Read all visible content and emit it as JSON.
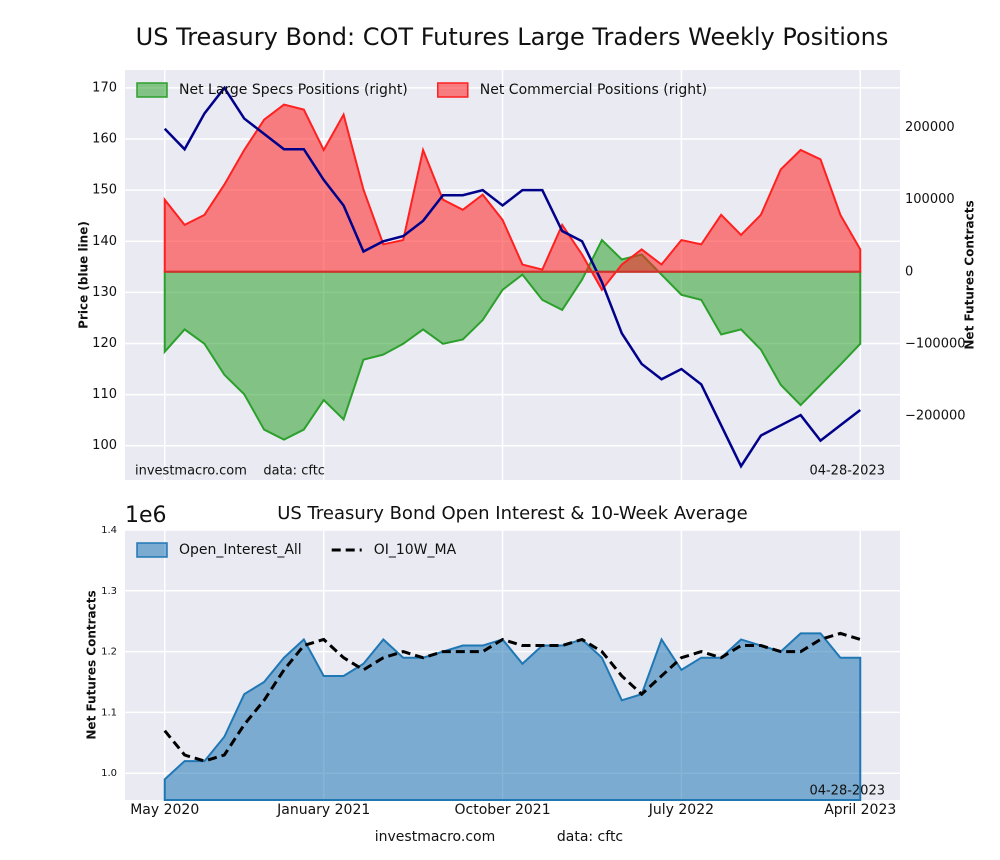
{
  "title": "US Treasury Bond: COT Futures Large Traders Weekly Positions",
  "chart_data": [
    {
      "type": "area",
      "ylabel": "Price (blue line)",
      "y2label": "Net Futures Contracts",
      "annotations": [
        "investmacro.com    data: cftc",
        "04-28-2023"
      ],
      "legend": "upper left",
      "grid": true,
      "x": [
        "2020-05",
        "2020-06",
        "2020-07",
        "2020-08",
        "2020-09",
        "2020-10",
        "2020-11",
        "2020-12",
        "2021-01",
        "2021-02",
        "2021-03",
        "2021-04",
        "2021-05",
        "2021-06",
        "2021-07",
        "2021-08",
        "2021-09",
        "2021-10",
        "2021-11",
        "2021-12",
        "2022-01",
        "2022-02",
        "2022-03",
        "2022-04",
        "2022-05",
        "2022-06",
        "2022-07",
        "2022-08",
        "2022-09",
        "2022-10",
        "2022-11",
        "2022-12",
        "2023-01",
        "2023-02",
        "2023-03",
        "2023-04"
      ],
      "xlim": [
        "2020-03",
        "2023-06"
      ],
      "xticks": [
        {
          "value": "2020-05",
          "label": "May 2020"
        },
        {
          "value": "2021-01",
          "label": "January 2021"
        },
        {
          "value": "2021-10",
          "label": "October 2021"
        },
        {
          "value": "2022-07",
          "label": "July 2022"
        },
        {
          "value": "2023-04",
          "label": "April 2023"
        }
      ],
      "ylim": [
        93.3,
        173.5
      ],
      "yticks": [
        100,
        110,
        120,
        130,
        140,
        150,
        160,
        170
      ],
      "y2lim": [
        -289000,
        280000
      ],
      "y2ticks": [
        {
          "value": -200000,
          "label": "−200000"
        },
        {
          "value": -100000,
          "label": "−100000"
        },
        0,
        100000,
        200000
      ],
      "series": [
        {
          "name": "Net Large Specs Positions (right)",
          "type": "area",
          "axis": "y2",
          "color": "#2ca02c",
          "values": [
            -111000,
            -80000,
            -100000,
            -143000,
            -170000,
            -219000,
            -233000,
            -219000,
            -178000,
            -205000,
            -122000,
            -115000,
            -100000,
            -80000,
            -100000,
            -94000,
            -67000,
            -25000,
            -4000,
            -39000,
            -53000,
            -11000,
            44000,
            17000,
            24000,
            -4000,
            -32000,
            -39000,
            -87000,
            -80000,
            -108000,
            -157000,
            -185000,
            -157000,
            -129000,
            -100000
          ]
        },
        {
          "name": "Net Commercial Positions (right)",
          "type": "area",
          "axis": "y2",
          "color": "#ff2020",
          "values": [
            100000,
            65000,
            79000,
            121000,
            169000,
            211000,
            232000,
            225000,
            169000,
            218000,
            114000,
            38000,
            44000,
            169000,
            100000,
            86000,
            107000,
            72000,
            10000,
            3000,
            65000,
            24000,
            -25000,
            10000,
            31000,
            10000,
            44000,
            38000,
            79000,
            51000,
            79000,
            142000,
            169000,
            156000,
            79000,
            31000
          ]
        },
        {
          "type": "line",
          "axis": "y",
          "color": "#00008b",
          "values": [
            162,
            158,
            165,
            170,
            164,
            161,
            158,
            158,
            152,
            147,
            138,
            140,
            141,
            144,
            149,
            149,
            150,
            147,
            150,
            150,
            142,
            140,
            132,
            122,
            116,
            113,
            115,
            112,
            104,
            96,
            102,
            104,
            106,
            101,
            104,
            107
          ]
        }
      ]
    },
    {
      "type": "area",
      "title": "US Treasury Bond Open Interest & 10-Week Average",
      "ylabel": "Net Futures Contracts",
      "offset_label": "1e6",
      "annotations": [
        "04-28-2023"
      ],
      "legend": "upper left",
      "grid": true,
      "x": [
        "2020-05",
        "2020-06",
        "2020-07",
        "2020-08",
        "2020-09",
        "2020-10",
        "2020-11",
        "2020-12",
        "2021-01",
        "2021-02",
        "2021-03",
        "2021-04",
        "2021-05",
        "2021-06",
        "2021-07",
        "2021-08",
        "2021-09",
        "2021-10",
        "2021-11",
        "2021-12",
        "2022-01",
        "2022-02",
        "2022-03",
        "2022-04",
        "2022-05",
        "2022-06",
        "2022-07",
        "2022-08",
        "2022-09",
        "2022-10",
        "2022-11",
        "2022-12",
        "2023-01",
        "2023-02",
        "2023-03",
        "2023-04"
      ],
      "xlim": [
        "2020-03",
        "2023-06"
      ],
      "xticks": [
        {
          "value": "2020-05",
          "label": "May 2020"
        },
        {
          "value": "2021-01",
          "label": "January 2021"
        },
        {
          "value": "2021-10",
          "label": "October 2021"
        },
        {
          "value": "2022-07",
          "label": "July 2022"
        },
        {
          "value": "2023-04",
          "label": "April 2023"
        }
      ],
      "ylim": [
        0.956,
        1.4
      ],
      "yticks": [
        {
          "value": 1,
          "label": "1.0"
        },
        1.1,
        1.2,
        1.3,
        1.4
      ],
      "series": [
        {
          "name": "Open_Interest_All",
          "type": "area",
          "axis": "y",
          "color": "#1f77b4",
          "values": [
            0.99,
            1.02,
            1.02,
            1.06,
            1.13,
            1.15,
            1.19,
            1.22,
            1.16,
            1.16,
            1.18,
            1.22,
            1.19,
            1.19,
            1.2,
            1.21,
            1.21,
            1.22,
            1.18,
            1.21,
            1.21,
            1.22,
            1.19,
            1.12,
            1.13,
            1.22,
            1.17,
            1.19,
            1.19,
            1.22,
            1.21,
            1.2,
            1.23,
            1.23,
            1.19,
            1.19
          ]
        },
        {
          "name": "OI_10W_MA",
          "type": "dashed",
          "axis": "y",
          "color": "#000000",
          "values": [
            1.07,
            1.03,
            1.02,
            1.03,
            1.08,
            1.12,
            1.17,
            1.21,
            1.22,
            1.19,
            1.17,
            1.19,
            1.2,
            1.19,
            1.2,
            1.2,
            1.2,
            1.22,
            1.21,
            1.21,
            1.21,
            1.22,
            1.2,
            1.16,
            1.13,
            1.16,
            1.19,
            1.2,
            1.19,
            1.21,
            1.21,
            1.2,
            1.2,
            1.22,
            1.23,
            1.22
          ]
        }
      ]
    }
  ],
  "footer": [
    "investmacro.com",
    "data: cftc"
  ]
}
